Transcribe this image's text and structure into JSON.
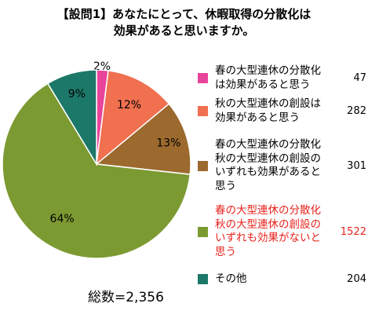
{
  "title_lines": [
    "【設問1】あなたにとって、休暇取得の分散化は",
    "効果があると思いますか。"
  ],
  "total_label": "総数=2,356",
  "chart_data": {
    "type": "pie",
    "title": "【設問1】あなたにとって、休暇取得の分散化は効果があると思いますか。",
    "slices": [
      {
        "label": "春の大型連休の分散化\nは効果があると思う",
        "count": 47,
        "percent_label": "2%",
        "color": "#e8449a",
        "label_color": "#000000"
      },
      {
        "label": "秋の大型連休の創設は\n効果があると思う",
        "count": 282,
        "percent_label": "12%",
        "color": "#f07050",
        "label_color": "#000000"
      },
      {
        "label": "春の大型連休の分散化\n秋の大型連休の創設の\nいずれも効果があると\n思う",
        "count": 301,
        "percent_label": "13%",
        "color": "#9c6a2e",
        "label_color": "#000000"
      },
      {
        "label": "春の大型連休の分散化\n秋の大型連休の創設の\nいずれも効果がないと\n思う",
        "count": 1522,
        "percent_label": "64%",
        "color": "#7c9a32",
        "label_color": "#e8231c"
      },
      {
        "label": "その他",
        "count": 204,
        "percent_label": "9%",
        "color": "#1c7868",
        "label_color": "#000000"
      }
    ],
    "total": 2356,
    "legend_position": "right"
  }
}
